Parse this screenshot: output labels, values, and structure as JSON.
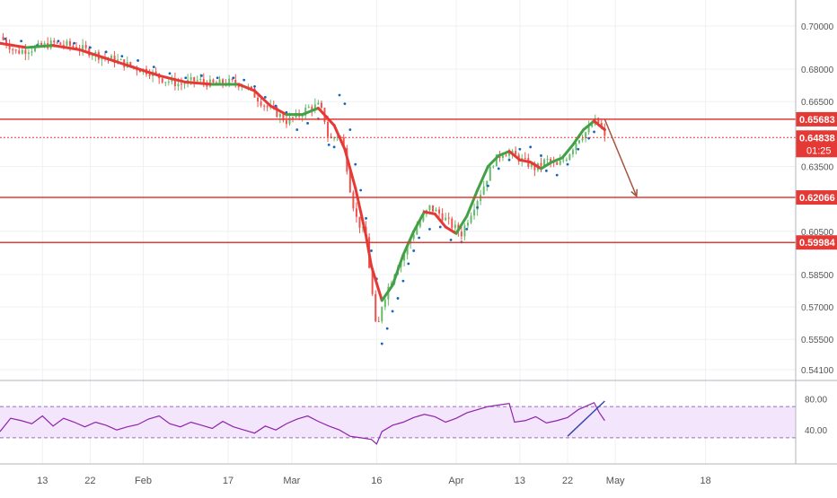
{
  "chart_data": {
    "type": "candlestick",
    "main_axis": {
      "ylim": [
        0.536,
        0.712
      ],
      "tick_labels": [
        "0.70000",
        "0.68000",
        "0.66500",
        "0.63500",
        "0.60500",
        "0.58500",
        "0.57000",
        "0.55500",
        "0.54100"
      ],
      "tick_values": [
        0.7,
        0.68,
        0.665,
        0.635,
        0.605,
        0.585,
        0.57,
        0.555,
        0.541
      ]
    },
    "rsi_axis": {
      "ylim": [
        0,
        100
      ],
      "tick_labels": [
        "80.00",
        "40.00"
      ],
      "tick_values": [
        80,
        40
      ],
      "band": [
        30,
        70
      ]
    },
    "x_axis": {
      "labels": [
        "13",
        "22",
        "Feb",
        "17",
        "Mar",
        "16",
        "Apr",
        "13",
        "22",
        "May",
        "18"
      ],
      "label_days": [
        13,
        22,
        32,
        48,
        60,
        76,
        91,
        103,
        112,
        121,
        138
      ],
      "range_days": [
        5,
        155
      ],
      "last_day": 119
    },
    "horizontal_levels": [
      {
        "value": 0.65683,
        "label": "0.65683",
        "color": "#e53935"
      },
      {
        "value": 0.62066,
        "label": "0.62066",
        "color": "#e53935"
      },
      {
        "value": 0.59984,
        "label": "0.59984",
        "color": "#e53935"
      }
    ],
    "current_price": {
      "value": 0.64838,
      "label": "0.64838",
      "countdown": "01:25",
      "color": "#e53935"
    },
    "close_path": [
      [
        5,
        0.695
      ],
      [
        8,
        0.688
      ],
      [
        12,
        0.69
      ],
      [
        15,
        0.692
      ],
      [
        18,
        0.691
      ],
      [
        21,
        0.689
      ],
      [
        24,
        0.686
      ],
      [
        27,
        0.684
      ],
      [
        30,
        0.681
      ],
      [
        33,
        0.679
      ],
      [
        36,
        0.675
      ],
      [
        39,
        0.673
      ],
      [
        42,
        0.675
      ],
      [
        45,
        0.673
      ],
      [
        48,
        0.674
      ],
      [
        51,
        0.673
      ],
      [
        53,
        0.668
      ],
      [
        55,
        0.663
      ],
      [
        57,
        0.66
      ],
      [
        59,
        0.656
      ],
      [
        61,
        0.658
      ],
      [
        63,
        0.662
      ],
      [
        65,
        0.663
      ],
      [
        66,
        0.659
      ],
      [
        67,
        0.647
      ],
      [
        69,
        0.65
      ],
      [
        70,
        0.641
      ],
      [
        71,
        0.625
      ],
      [
        72,
        0.612
      ],
      [
        74,
        0.602
      ],
      [
        75,
        0.58
      ],
      [
        76,
        0.557
      ],
      [
        77,
        0.571
      ],
      [
        78,
        0.578
      ],
      [
        80,
        0.59
      ],
      [
        81,
        0.593
      ],
      [
        82,
        0.6
      ],
      [
        84,
        0.609
      ],
      [
        86,
        0.616
      ],
      [
        88,
        0.613
      ],
      [
        90,
        0.608
      ],
      [
        92,
        0.604
      ],
      [
        94,
        0.615
      ],
      [
        96,
        0.625
      ],
      [
        98,
        0.637
      ],
      [
        100,
        0.642
      ],
      [
        102,
        0.64
      ],
      [
        104,
        0.637
      ],
      [
        106,
        0.634
      ],
      [
        108,
        0.638
      ],
      [
        110,
        0.635
      ],
      [
        112,
        0.64
      ],
      [
        114,
        0.648
      ],
      [
        116,
        0.652
      ],
      [
        117,
        0.656
      ],
      [
        118,
        0.655
      ],
      [
        119,
        0.648
      ]
    ],
    "ma_path": [
      [
        5,
        0.692
      ],
      [
        10,
        0.69
      ],
      [
        15,
        0.691
      ],
      [
        20,
        0.689
      ],
      [
        25,
        0.685
      ],
      [
        30,
        0.681
      ],
      [
        35,
        0.677
      ],
      [
        40,
        0.674
      ],
      [
        45,
        0.673
      ],
      [
        50,
        0.673
      ],
      [
        53,
        0.67
      ],
      [
        56,
        0.663
      ],
      [
        59,
        0.659
      ],
      [
        62,
        0.659
      ],
      [
        65,
        0.662
      ],
      [
        68,
        0.654
      ],
      [
        70,
        0.643
      ],
      [
        72,
        0.625
      ],
      [
        74,
        0.603
      ],
      [
        75,
        0.589
      ],
      [
        77,
        0.573
      ],
      [
        79,
        0.58
      ],
      [
        81,
        0.594
      ],
      [
        83,
        0.605
      ],
      [
        85,
        0.614
      ],
      [
        87,
        0.613
      ],
      [
        89,
        0.607
      ],
      [
        91,
        0.604
      ],
      [
        93,
        0.612
      ],
      [
        95,
        0.624
      ],
      [
        97,
        0.635
      ],
      [
        99,
        0.64
      ],
      [
        101,
        0.642
      ],
      [
        103,
        0.638
      ],
      [
        105,
        0.637
      ],
      [
        107,
        0.634
      ],
      [
        109,
        0.637
      ],
      [
        111,
        0.639
      ],
      [
        113,
        0.645
      ],
      [
        115,
        0.652
      ],
      [
        117,
        0.656
      ],
      [
        119,
        0.652
      ]
    ],
    "psar_points": [
      [
        6,
        0.694
      ],
      [
        9,
        0.693
      ],
      [
        12,
        0.691
      ],
      [
        16,
        0.693
      ],
      [
        19,
        0.692
      ],
      [
        22,
        0.69
      ],
      [
        25,
        0.688
      ],
      [
        28,
        0.686
      ],
      [
        31,
        0.684
      ],
      [
        34,
        0.681
      ],
      [
        37,
        0.678
      ],
      [
        40,
        0.676
      ],
      [
        43,
        0.677
      ],
      [
        46,
        0.676
      ],
      [
        49,
        0.676
      ],
      [
        51,
        0.675
      ],
      [
        53,
        0.672
      ],
      [
        55,
        0.667
      ],
      [
        57,
        0.663
      ],
      [
        59,
        0.66
      ],
      [
        61,
        0.652
      ],
      [
        63,
        0.655
      ],
      [
        65,
        0.657
      ],
      [
        67,
        0.645
      ],
      [
        68,
        0.644
      ],
      [
        69,
        0.668
      ],
      [
        70,
        0.664
      ],
      [
        71,
        0.652
      ],
      [
        72,
        0.636
      ],
      [
        73,
        0.624
      ],
      [
        74,
        0.611
      ],
      [
        75,
        0.596
      ],
      [
        76,
        0.583
      ],
      [
        77,
        0.553
      ],
      [
        78,
        0.56
      ],
      [
        79,
        0.568
      ],
      [
        80,
        0.574
      ],
      [
        81,
        0.582
      ],
      [
        82,
        0.59
      ],
      [
        83,
        0.596
      ],
      [
        84,
        0.602
      ],
      [
        86,
        0.606
      ],
      [
        88,
        0.607
      ],
      [
        90,
        0.601
      ],
      [
        92,
        0.6
      ],
      [
        93,
        0.606
      ],
      [
        95,
        0.616
      ],
      [
        97,
        0.626
      ],
      [
        99,
        0.634
      ],
      [
        101,
        0.638
      ],
      [
        103,
        0.643
      ],
      [
        105,
        0.644
      ],
      [
        107,
        0.64
      ],
      [
        108,
        0.633
      ],
      [
        110,
        0.631
      ],
      [
        112,
        0.636
      ],
      [
        114,
        0.643
      ],
      [
        116,
        0.648
      ],
      [
        117,
        0.651
      ],
      [
        118,
        0.654
      ]
    ],
    "rsi_path": [
      [
        5,
        38
      ],
      [
        7,
        55
      ],
      [
        9,
        52
      ],
      [
        11,
        48
      ],
      [
        13,
        58
      ],
      [
        15,
        45
      ],
      [
        17,
        55
      ],
      [
        19,
        50
      ],
      [
        21,
        44
      ],
      [
        23,
        50
      ],
      [
        25,
        46
      ],
      [
        27,
        40
      ],
      [
        29,
        44
      ],
      [
        31,
        47
      ],
      [
        33,
        54
      ],
      [
        35,
        58
      ],
      [
        37,
        48
      ],
      [
        39,
        44
      ],
      [
        41,
        50
      ],
      [
        43,
        46
      ],
      [
        45,
        42
      ],
      [
        47,
        51
      ],
      [
        49,
        44
      ],
      [
        51,
        40
      ],
      [
        53,
        36
      ],
      [
        55,
        45
      ],
      [
        57,
        40
      ],
      [
        59,
        48
      ],
      [
        61,
        54
      ],
      [
        63,
        58
      ],
      [
        65,
        51
      ],
      [
        67,
        45
      ],
      [
        69,
        40
      ],
      [
        71,
        32
      ],
      [
        73,
        30
      ],
      [
        75,
        28
      ],
      [
        76,
        22
      ],
      [
        77,
        38
      ],
      [
        79,
        46
      ],
      [
        81,
        50
      ],
      [
        83,
        56
      ],
      [
        85,
        60
      ],
      [
        87,
        57
      ],
      [
        89,
        50
      ],
      [
        91,
        55
      ],
      [
        93,
        62
      ],
      [
        95,
        66
      ],
      [
        97,
        70
      ],
      [
        99,
        72
      ],
      [
        101,
        74
      ],
      [
        102,
        50
      ],
      [
        104,
        52
      ],
      [
        106,
        57
      ],
      [
        108,
        49
      ],
      [
        110,
        52
      ],
      [
        112,
        56
      ],
      [
        114,
        66
      ],
      [
        116,
        72
      ],
      [
        117,
        75
      ],
      [
        118,
        62
      ],
      [
        119,
        52
      ]
    ],
    "annotations": [
      {
        "type": "arrow",
        "from": [
          119,
          0.6568
        ],
        "to": [
          125,
          0.6212
        ],
        "color": "#a5533a"
      },
      {
        "type": "trendline",
        "pane": "rsi",
        "from": [
          112,
          32
        ],
        "to": [
          119,
          77
        ],
        "color": "#3949ab"
      }
    ],
    "colors": {
      "up_candle": "#66bb6a",
      "down_candle": "#ef5350",
      "ma_up": "#43a047",
      "ma_down": "#e53935",
      "psar": "#1565c0",
      "rsi_line": "#8e24aa",
      "rsi_fill": "#f3e5fc",
      "rsi_band": "#9c6fb5",
      "grid": "#eef0f3",
      "axis_text": "#555555"
    }
  }
}
